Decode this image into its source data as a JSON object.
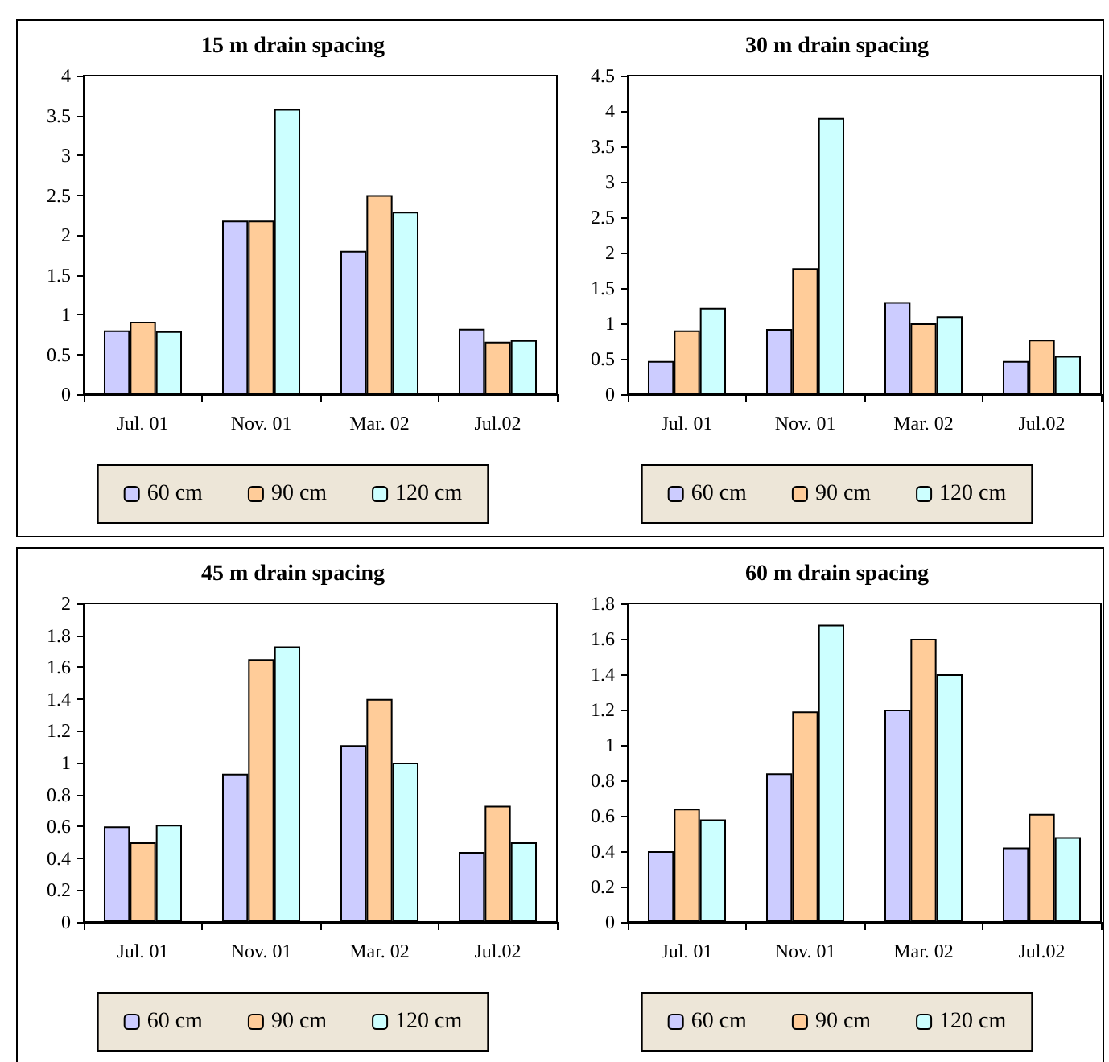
{
  "chart_data": [
    {
      "type": "bar",
      "title": "15 m drain spacing",
      "categories": [
        "Jul. 01",
        "Nov. 01",
        "Mar. 02",
        "Jul.02"
      ],
      "series": [
        {
          "name": "60 cm",
          "color": "#ccccff",
          "values": [
            0.8,
            2.18,
            1.8,
            0.82
          ]
        },
        {
          "name": "90 cm",
          "color": "#ffcc99",
          "values": [
            0.91,
            2.18,
            2.5,
            0.66
          ]
        },
        {
          "name": "120 cm",
          "color": "#ccffff",
          "values": [
            0.79,
            3.58,
            2.29,
            0.68
          ]
        }
      ],
      "ylim": [
        0,
        4
      ],
      "yticks": [
        0,
        0.5,
        1,
        1.5,
        2,
        2.5,
        3,
        3.5,
        4
      ],
      "grid": false,
      "legend": "bottom"
    },
    {
      "type": "bar",
      "title": "30 m drain spacing",
      "categories": [
        "Jul. 01",
        "Nov. 01",
        "Mar. 02",
        "Jul.02"
      ],
      "series": [
        {
          "name": "60 cm",
          "color": "#ccccff",
          "values": [
            0.47,
            0.92,
            1.3,
            0.47
          ]
        },
        {
          "name": "90 cm",
          "color": "#ffcc99",
          "values": [
            0.9,
            1.78,
            1.0,
            0.77
          ]
        },
        {
          "name": "120 cm",
          "color": "#ccffff",
          "values": [
            1.22,
            3.9,
            1.1,
            0.54
          ]
        }
      ],
      "ylim": [
        0,
        4.5
      ],
      "yticks": [
        0,
        0.5,
        1,
        1.5,
        2,
        2.5,
        3,
        3.5,
        4,
        4.5
      ],
      "grid": false,
      "legend": "bottom"
    },
    {
      "type": "bar",
      "title": "45 m drain spacing",
      "categories": [
        "Jul. 01",
        "Nov. 01",
        "Mar. 02",
        "Jul.02"
      ],
      "series": [
        {
          "name": "60 cm",
          "color": "#ccccff",
          "values": [
            0.6,
            0.93,
            1.11,
            0.44
          ]
        },
        {
          "name": "90 cm",
          "color": "#ffcc99",
          "values": [
            0.5,
            1.65,
            1.4,
            0.73
          ]
        },
        {
          "name": "120 cm",
          "color": "#ccffff",
          "values": [
            0.61,
            1.73,
            1.0,
            0.5
          ]
        }
      ],
      "ylim": [
        0,
        2
      ],
      "yticks": [
        0,
        0.2,
        0.4,
        0.6,
        0.8,
        1,
        1.2,
        1.4,
        1.6,
        1.8,
        2
      ],
      "grid": false,
      "legend": "bottom"
    },
    {
      "type": "bar",
      "title": "60 m drain spacing",
      "categories": [
        "Jul. 01",
        "Nov. 01",
        "Mar. 02",
        "Jul.02"
      ],
      "series": [
        {
          "name": "60 cm",
          "color": "#ccccff",
          "values": [
            0.4,
            0.84,
            1.2,
            0.42
          ]
        },
        {
          "name": "90 cm",
          "color": "#ffcc99",
          "values": [
            0.64,
            1.19,
            1.6,
            0.61
          ]
        },
        {
          "name": "120 cm",
          "color": "#ccffff",
          "values": [
            0.58,
            1.68,
            1.4,
            0.48
          ]
        }
      ],
      "ylim": [
        0,
        1.8
      ],
      "yticks": [
        0,
        0.2,
        0.4,
        0.6,
        0.8,
        1,
        1.2,
        1.4,
        1.6,
        1.8
      ],
      "grid": false,
      "legend": "bottom"
    }
  ]
}
